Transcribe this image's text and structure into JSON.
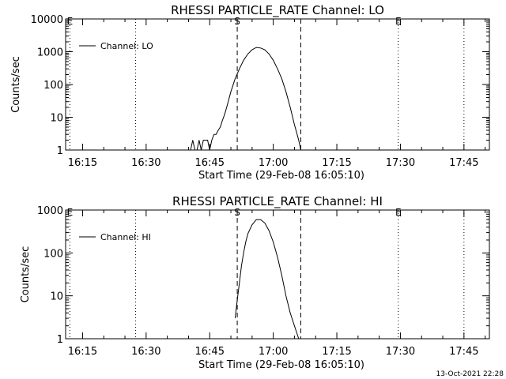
{
  "footer_timestamp": "13-Oct-2021 22:28",
  "chart_data": [
    {
      "type": "line",
      "title": "RHESSI PARTICLE_RATE Channel: LO",
      "xlabel": "Start Time (29-Feb-08 16:05:10)",
      "ylabel": "Counts/sec",
      "yscale": "log",
      "ylim": [
        1,
        10000
      ],
      "xlim_min": [
        6.0,
        106.0
      ],
      "x_unit": "minutes after 16:05:10",
      "x_ticks": [
        {
          "min": 10,
          "label": "16:15"
        },
        {
          "min": 25,
          "label": "16:30"
        },
        {
          "min": 40,
          "label": "16:45"
        },
        {
          "min": 55,
          "label": "17:00"
        },
        {
          "min": 70,
          "label": "17:15"
        },
        {
          "min": 85,
          "label": "17:30"
        },
        {
          "min": 100,
          "label": "17:45"
        }
      ],
      "y_ticks": [
        {
          "v": 1,
          "label": "1"
        },
        {
          "v": 10,
          "label": "10"
        },
        {
          "v": 100,
          "label": "100"
        },
        {
          "v": 1000,
          "label": "1000"
        },
        {
          "v": 10000,
          "label": "10000"
        }
      ],
      "legend": {
        "placement": "top-left",
        "label": "Channel: LO"
      },
      "markers": [
        {
          "min": 7.0,
          "style": "dotted",
          "label": "E"
        },
        {
          "min": 22.5,
          "style": "dotted",
          "label": ""
        },
        {
          "min": 46.5,
          "style": "dashed",
          "label": "S"
        },
        {
          "min": 61.5,
          "style": "dashed",
          "label": ""
        },
        {
          "min": 84.5,
          "style": "dotted",
          "label": "E"
        },
        {
          "min": 100.0,
          "style": "dotted",
          "label": ""
        }
      ],
      "series": [
        {
          "name": "Channel: LO",
          "points": [
            [
              35.5,
              1
            ],
            [
              36.0,
              2
            ],
            [
              36.5,
              1
            ],
            [
              37.0,
              1
            ],
            [
              37.5,
              2
            ],
            [
              38.0,
              1
            ],
            [
              38.5,
              2
            ],
            [
              39.0,
              2
            ],
            [
              39.5,
              2
            ],
            [
              40.0,
              1
            ],
            [
              40.5,
              2
            ],
            [
              41.0,
              3
            ],
            [
              41.5,
              3
            ],
            [
              42.0,
              4
            ],
            [
              42.5,
              5
            ],
            [
              43.0,
              8
            ],
            [
              43.5,
              12
            ],
            [
              44.0,
              20
            ],
            [
              44.5,
              35
            ],
            [
              45.0,
              60
            ],
            [
              46.0,
              150
            ],
            [
              47.0,
              300
            ],
            [
              48.0,
              550
            ],
            [
              49.0,
              850
            ],
            [
              50.0,
              1150
            ],
            [
              51.0,
              1350
            ],
            [
              52.0,
              1300
            ],
            [
              53.0,
              1150
            ],
            [
              54.0,
              850
            ],
            [
              55.0,
              550
            ],
            [
              56.0,
              300
            ],
            [
              57.0,
              150
            ],
            [
              58.0,
              60
            ],
            [
              59.0,
              20
            ],
            [
              60.0,
              6
            ],
            [
              61.0,
              2
            ],
            [
              61.5,
              1
            ]
          ]
        }
      ]
    },
    {
      "type": "line",
      "title": "RHESSI PARTICLE_RATE Channel: HI",
      "xlabel": "Start Time (29-Feb-08 16:05:10)",
      "ylabel": "Counts/sec",
      "yscale": "log",
      "ylim": [
        1,
        1000
      ],
      "xlim_min": [
        6.0,
        106.0
      ],
      "x_unit": "minutes after 16:05:10",
      "x_ticks": [
        {
          "min": 10,
          "label": "16:15"
        },
        {
          "min": 25,
          "label": "16:30"
        },
        {
          "min": 40,
          "label": "16:45"
        },
        {
          "min": 55,
          "label": "17:00"
        },
        {
          "min": 70,
          "label": "17:15"
        },
        {
          "min": 85,
          "label": "17:30"
        },
        {
          "min": 100,
          "label": "17:45"
        }
      ],
      "y_ticks": [
        {
          "v": 1,
          "label": "1"
        },
        {
          "v": 10,
          "label": "10"
        },
        {
          "v": 100,
          "label": "100"
        },
        {
          "v": 1000,
          "label": "1000"
        }
      ],
      "legend": {
        "placement": "top-left",
        "label": "Channel: HI"
      },
      "markers": [
        {
          "min": 7.0,
          "style": "dotted",
          "label": "E"
        },
        {
          "min": 22.5,
          "style": "dotted",
          "label": ""
        },
        {
          "min": 46.5,
          "style": "dashed",
          "label": "S"
        },
        {
          "min": 61.5,
          "style": "dashed",
          "label": ""
        },
        {
          "min": 84.5,
          "style": "dotted",
          "label": "E"
        },
        {
          "min": 100.0,
          "style": "dotted",
          "label": ""
        }
      ],
      "series": [
        {
          "name": "Channel: HI",
          "points": [
            [
              46.0,
              3
            ],
            [
              46.5,
              8
            ],
            [
              47.0,
              20
            ],
            [
              47.5,
              50
            ],
            [
              48.0,
              100
            ],
            [
              48.5,
              180
            ],
            [
              49.0,
              280
            ],
            [
              50.0,
              450
            ],
            [
              51.0,
              600
            ],
            [
              52.0,
              600
            ],
            [
              53.0,
              500
            ],
            [
              54.0,
              330
            ],
            [
              55.0,
              180
            ],
            [
              56.0,
              80
            ],
            [
              57.0,
              30
            ],
            [
              58.0,
              10
            ],
            [
              59.0,
              4
            ],
            [
              60.0,
              2
            ],
            [
              61.0,
              1
            ]
          ]
        }
      ]
    }
  ]
}
